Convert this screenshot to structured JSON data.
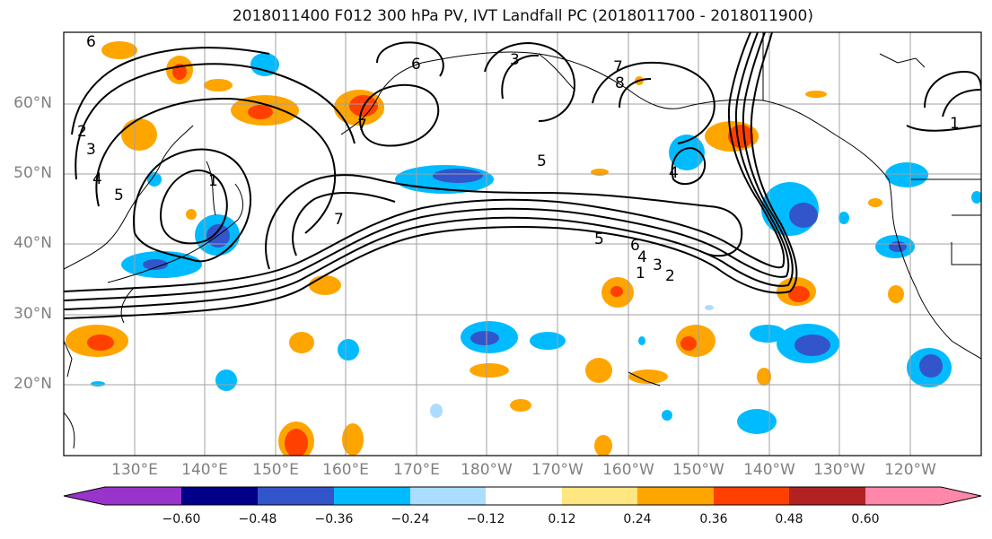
{
  "title": "2018011400 F012 300 hPa PV, IVT Landfall PC (2018011700 - 2018011900)",
  "map": {
    "lat_labels": [
      "60°N",
      "50°N",
      "40°N",
      "30°N",
      "20°N"
    ],
    "lon_labels": [
      "130°E",
      "140°E",
      "150°E",
      "160°E",
      "170°E",
      "180°W",
      "170°W",
      "160°W",
      "150°W",
      "140°W",
      "130°W",
      "120°W"
    ],
    "contour_labels": [
      "6",
      "2",
      "3",
      "4",
      "5",
      "1",
      "7",
      "6",
      "5",
      "6",
      "5",
      "4",
      "3",
      "2",
      "1",
      "4",
      "7",
      "8",
      "3",
      "7",
      "1"
    ]
  },
  "colorbar": {
    "tick_labels": [
      "−0.60",
      "−0.48",
      "−0.36",
      "−0.24",
      "−0.12",
      "0.12",
      "0.24",
      "0.36",
      "0.48",
      "0.60"
    ],
    "colors": [
      "#9933cc",
      "#000088",
      "#3355cc",
      "#00bbff",
      "#aaddff",
      "#ffffff",
      "#ffe680",
      "#ffa500",
      "#ff4000",
      "#b22222",
      "#ff88aa"
    ]
  },
  "colors": {
    "grid": "#a0a0a0",
    "contour": "#000000",
    "coast": "#000000"
  }
}
